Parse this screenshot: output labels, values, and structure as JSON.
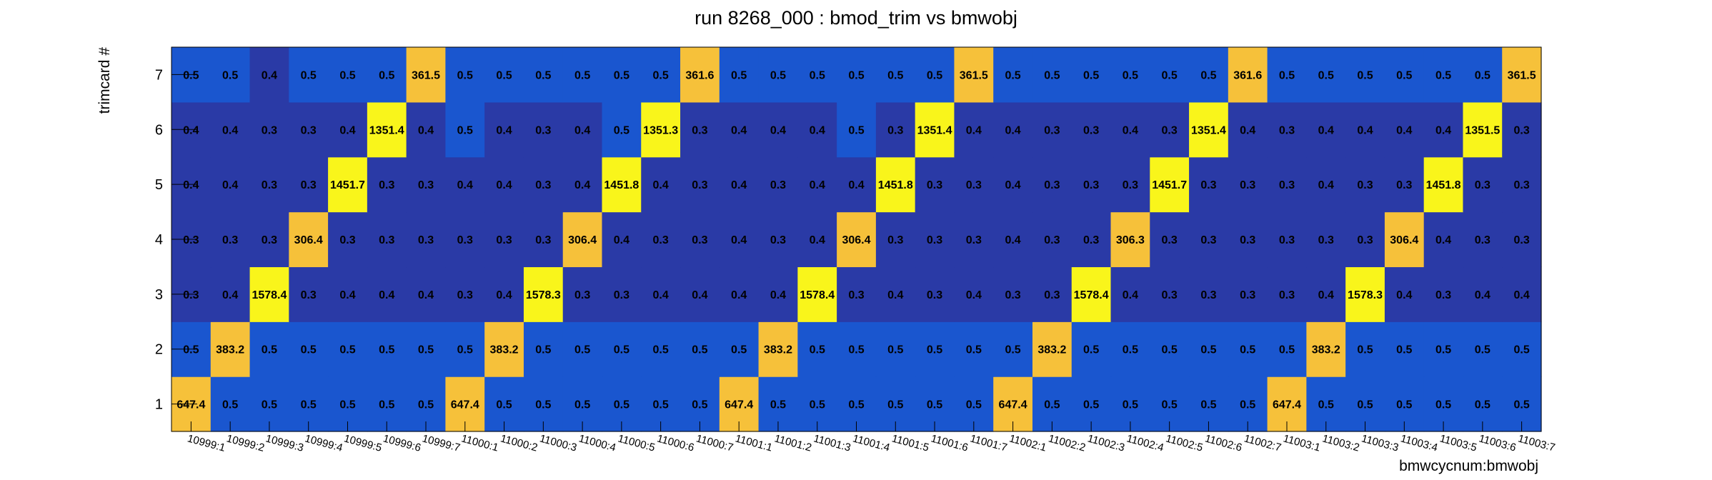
{
  "chart_data": {
    "type": "heatmap",
    "title": "run 8268_000 : bmod_trim vs bmwobj",
    "xlabel": "bmwcycnum:bmwobj",
    "ylabel": "trimcard #",
    "x_categories": [
      "10999:1",
      "10999:2",
      "10999:3",
      "10999:4",
      "10999:5",
      "10999:6",
      "10999:7",
      "11000:1",
      "11000:2",
      "11000:3",
      "11000:4",
      "11000:5",
      "11000:6",
      "11000:7",
      "11001:1",
      "11001:2",
      "11001:3",
      "11001:4",
      "11001:5",
      "11001:6",
      "11001:7",
      "11002:1",
      "11002:2",
      "11002:3",
      "11002:4",
      "11002:5",
      "11002:6",
      "11002:7",
      "11003:1",
      "11003:2",
      "11003:3",
      "11003:4",
      "11003:5",
      "11003:6",
      "11003:7"
    ],
    "y_categories": [
      "1",
      "2",
      "3",
      "4",
      "5",
      "6",
      "7"
    ],
    "values": [
      [
        "647.4",
        "0.5",
        "0.5",
        "0.5",
        "0.5",
        "0.5",
        "0.5",
        "647.4",
        "0.5",
        "0.5",
        "0.5",
        "0.5",
        "0.5",
        "0.5",
        "647.4",
        "0.5",
        "0.5",
        "0.5",
        "0.5",
        "0.5",
        "0.5",
        "647.4",
        "0.5",
        "0.5",
        "0.5",
        "0.5",
        "0.5",
        "0.5",
        "647.4",
        "0.5",
        "0.5",
        "0.5",
        "0.5",
        "0.5",
        "0.5"
      ],
      [
        "0.5",
        "383.2",
        "0.5",
        "0.5",
        "0.5",
        "0.5",
        "0.5",
        "0.5",
        "383.2",
        "0.5",
        "0.5",
        "0.5",
        "0.5",
        "0.5",
        "0.5",
        "383.2",
        "0.5",
        "0.5",
        "0.5",
        "0.5",
        "0.5",
        "0.5",
        "383.2",
        "0.5",
        "0.5",
        "0.5",
        "0.5",
        "0.5",
        "0.5",
        "383.2",
        "0.5",
        "0.5",
        "0.5",
        "0.5",
        "0.5"
      ],
      [
        "0.3",
        "0.4",
        "1578.4",
        "0.3",
        "0.4",
        "0.4",
        "0.4",
        "0.3",
        "0.4",
        "1578.3",
        "0.3",
        "0.3",
        "0.4",
        "0.4",
        "0.4",
        "0.4",
        "1578.4",
        "0.3",
        "0.4",
        "0.3",
        "0.4",
        "0.3",
        "0.3",
        "1578.4",
        "0.4",
        "0.3",
        "0.3",
        "0.3",
        "0.3",
        "0.4",
        "1578.3",
        "0.4",
        "0.3",
        "0.4",
        "0.4"
      ],
      [
        "0.3",
        "0.3",
        "0.3",
        "306.4",
        "0.3",
        "0.3",
        "0.3",
        "0.3",
        "0.3",
        "0.3",
        "306.4",
        "0.4",
        "0.3",
        "0.3",
        "0.4",
        "0.3",
        "0.4",
        "306.4",
        "0.3",
        "0.3",
        "0.3",
        "0.4",
        "0.3",
        "0.3",
        "306.3",
        "0.3",
        "0.3",
        "0.3",
        "0.3",
        "0.3",
        "0.3",
        "306.4",
        "0.4",
        "0.3",
        "0.3"
      ],
      [
        "0.4",
        "0.4",
        "0.3",
        "0.3",
        "1451.7",
        "0.3",
        "0.3",
        "0.4",
        "0.4",
        "0.3",
        "0.4",
        "1451.8",
        "0.4",
        "0.3",
        "0.4",
        "0.3",
        "0.4",
        "0.4",
        "1451.8",
        "0.3",
        "0.3",
        "0.4",
        "0.3",
        "0.3",
        "0.3",
        "1451.7",
        "0.3",
        "0.3",
        "0.3",
        "0.4",
        "0.3",
        "0.3",
        "1451.8",
        "0.3",
        "0.3"
      ],
      [
        "0.4",
        "0.4",
        "0.3",
        "0.3",
        "0.4",
        "1351.4",
        "0.4",
        "0.5",
        "0.4",
        "0.3",
        "0.4",
        "0.5",
        "1351.3",
        "0.3",
        "0.4",
        "0.4",
        "0.4",
        "0.5",
        "0.3",
        "1351.4",
        "0.4",
        "0.4",
        "0.3",
        "0.3",
        "0.4",
        "0.3",
        "1351.4",
        "0.4",
        "0.3",
        "0.4",
        "0.4",
        "0.4",
        "0.4",
        "1351.5",
        "0.3"
      ],
      [
        "0.5",
        "0.5",
        "0.4",
        "0.5",
        "0.5",
        "0.5",
        "361.5",
        "0.5",
        "0.5",
        "0.5",
        "0.5",
        "0.5",
        "0.5",
        "361.6",
        "0.5",
        "0.5",
        "0.5",
        "0.5",
        "0.5",
        "0.5",
        "361.5",
        "0.5",
        "0.5",
        "0.5",
        "0.5",
        "0.5",
        "0.5",
        "361.6",
        "0.5",
        "0.5",
        "0.5",
        "0.5",
        "0.5",
        "0.5",
        "361.5"
      ]
    ],
    "colors": {
      "low_dark": "#2a3aa6",
      "low_blue": "#1a56cf",
      "mid_orange": "#f6c13a",
      "high_yellow": "#f9f51b",
      "text": "#000000",
      "axis": "#000000"
    },
    "grid": false,
    "legend": "none"
  }
}
